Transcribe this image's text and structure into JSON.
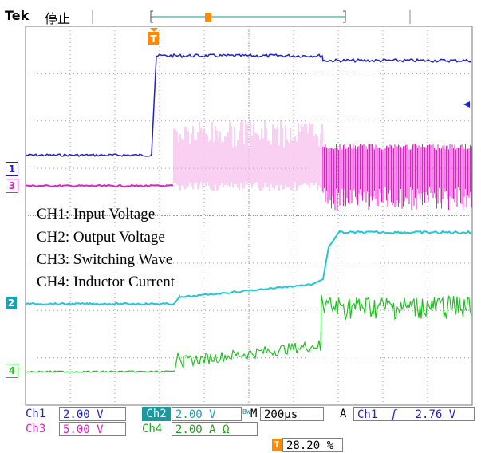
{
  "header": {
    "brand": "Tek",
    "status": "停止"
  },
  "channels": [
    {
      "id": "1",
      "label": "Ch1",
      "scale": "2.00 V",
      "color": "#2020c8"
    },
    {
      "id": "2",
      "label": "Ch2",
      "scale": "2.00 V",
      "color": "#1ec8d8"
    },
    {
      "id": "3",
      "label": "Ch3",
      "scale": "5.00 V",
      "color": "#e020c8"
    },
    {
      "id": "4",
      "label": "Ch4",
      "scale": "2.00 A",
      "unit_suffix": "Ω",
      "color": "#20c020"
    }
  ],
  "legend": [
    "CH1: Input Voltage",
    "CH2: Output Voltage",
    "CH3: Switching Wave",
    "CH4: Inductor Current"
  ],
  "timebase": {
    "label": "M",
    "value": "200µs",
    "bw": "BW"
  },
  "trigger": {
    "mode": "A",
    "source": "Ch1",
    "slope": "ʃ",
    "level": "2.76 V",
    "position": "28.20 %",
    "marker": "T"
  },
  "colors": {
    "grid": "#9a9a9a",
    "trigger": "#ff8a00",
    "bg": "#ffffff"
  }
}
